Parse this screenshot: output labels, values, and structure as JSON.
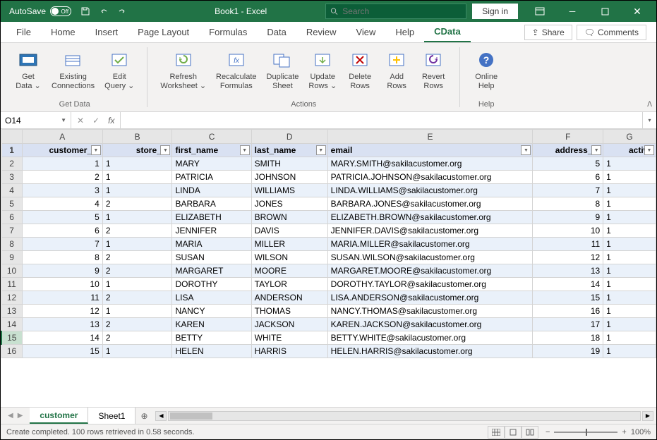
{
  "titlebar": {
    "autosave_label": "AutoSave",
    "autosave_state": "Off",
    "doc_title": "Book1 - Excel",
    "search_placeholder": "Search",
    "signin_label": "Sign in"
  },
  "tabs": {
    "list": [
      "File",
      "Home",
      "Insert",
      "Page Layout",
      "Formulas",
      "Data",
      "Review",
      "View",
      "Help",
      "CData"
    ],
    "active": "CData",
    "share": "Share",
    "comments": "Comments"
  },
  "ribbon": {
    "groups": [
      {
        "label": "Get Data",
        "items": [
          "Get Data ⌄",
          "Existing Connections",
          "Edit Query ⌄"
        ]
      },
      {
        "label": "Actions",
        "items": [
          "Refresh Worksheet ⌄",
          "Recalculate Formulas",
          "Duplicate Sheet",
          "Update Rows ⌄",
          "Delete Rows",
          "Add Rows",
          "Revert Rows"
        ]
      },
      {
        "label": "Help",
        "items": [
          "Online Help"
        ]
      }
    ],
    "icon_colors": {
      "primary": "#8faadc",
      "accent": "#4472c4",
      "green": "#70ad47",
      "red": "#c00000",
      "purple": "#7030a0",
      "yellow": "#ffc000"
    }
  },
  "namebox": {
    "value": "O14"
  },
  "formula": {
    "value": ""
  },
  "sheet": {
    "col_letters": [
      "A",
      "B",
      "C",
      "D",
      "E",
      "F",
      "G"
    ],
    "headers": [
      "customer_id",
      "store_id",
      "first_name",
      "last_name",
      "email",
      "address_id",
      "active"
    ],
    "header_align": [
      "right",
      "right",
      "left",
      "left",
      "left",
      "right",
      "right"
    ],
    "selected_row_index": 13,
    "rows": [
      {
        "n": 2,
        "v": [
          "1",
          "1",
          "MARY",
          "SMITH",
          "MARY.SMITH@sakilacustomer.org",
          "5",
          "1"
        ]
      },
      {
        "n": 3,
        "v": [
          "2",
          "1",
          "PATRICIA",
          "JOHNSON",
          "PATRICIA.JOHNSON@sakilacustomer.org",
          "6",
          "1"
        ]
      },
      {
        "n": 4,
        "v": [
          "3",
          "1",
          "LINDA",
          "WILLIAMS",
          "LINDA.WILLIAMS@sakilacustomer.org",
          "7",
          "1"
        ]
      },
      {
        "n": 5,
        "v": [
          "4",
          "2",
          "BARBARA",
          "JONES",
          "BARBARA.JONES@sakilacustomer.org",
          "8",
          "1"
        ]
      },
      {
        "n": 6,
        "v": [
          "5",
          "1",
          "ELIZABETH",
          "BROWN",
          "ELIZABETH.BROWN@sakilacustomer.org",
          "9",
          "1"
        ]
      },
      {
        "n": 7,
        "v": [
          "6",
          "2",
          "JENNIFER",
          "DAVIS",
          "JENNIFER.DAVIS@sakilacustomer.org",
          "10",
          "1"
        ]
      },
      {
        "n": 8,
        "v": [
          "7",
          "1",
          "MARIA",
          "MILLER",
          "MARIA.MILLER@sakilacustomer.org",
          "11",
          "1"
        ]
      },
      {
        "n": 9,
        "v": [
          "8",
          "2",
          "SUSAN",
          "WILSON",
          "SUSAN.WILSON@sakilacustomer.org",
          "12",
          "1"
        ]
      },
      {
        "n": 10,
        "v": [
          "9",
          "2",
          "MARGARET",
          "MOORE",
          "MARGARET.MOORE@sakilacustomer.org",
          "13",
          "1"
        ]
      },
      {
        "n": 11,
        "v": [
          "10",
          "1",
          "DOROTHY",
          "TAYLOR",
          "DOROTHY.TAYLOR@sakilacustomer.org",
          "14",
          "1"
        ]
      },
      {
        "n": 12,
        "v": [
          "11",
          "2",
          "LISA",
          "ANDERSON",
          "LISA.ANDERSON@sakilacustomer.org",
          "15",
          "1"
        ]
      },
      {
        "n": 13,
        "v": [
          "12",
          "1",
          "NANCY",
          "THOMAS",
          "NANCY.THOMAS@sakilacustomer.org",
          "16",
          "1"
        ]
      },
      {
        "n": 14,
        "v": [
          "13",
          "2",
          "KAREN",
          "JACKSON",
          "KAREN.JACKSON@sakilacustomer.org",
          "17",
          "1"
        ]
      },
      {
        "n": 15,
        "v": [
          "14",
          "2",
          "BETTY",
          "WHITE",
          "BETTY.WHITE@sakilacustomer.org",
          "18",
          "1"
        ]
      },
      {
        "n": 16,
        "v": [
          "15",
          "1",
          "HELEN",
          "HARRIS",
          "HELEN.HARRIS@sakilacustomer.org",
          "19",
          "1"
        ]
      }
    ],
    "num_cols": [
      0,
      5
    ],
    "stripe_color": "#eaf1fa",
    "header_bg": "#d9e1f2"
  },
  "sheet_tabs": {
    "tabs": [
      "customer",
      "Sheet1"
    ],
    "active": "customer"
  },
  "status": {
    "message": "Create completed. 100 rows retrieved in 0.58 seconds.",
    "zoom": "100%"
  }
}
